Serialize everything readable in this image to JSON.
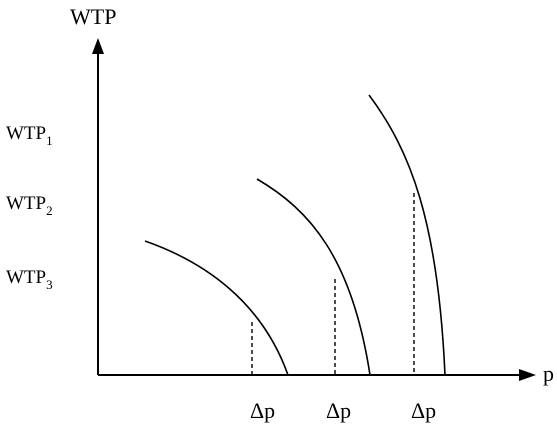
{
  "diagram": {
    "y_axis_title": "WTP",
    "x_axis_title": "p",
    "y_labels": [
      {
        "base": "WTP",
        "sub": "1"
      },
      {
        "base": "WTP",
        "sub": "2"
      },
      {
        "base": "WTP",
        "sub": "3"
      }
    ],
    "x_labels": [
      "Δp",
      "Δp",
      "Δp"
    ],
    "curve_count": 3
  }
}
